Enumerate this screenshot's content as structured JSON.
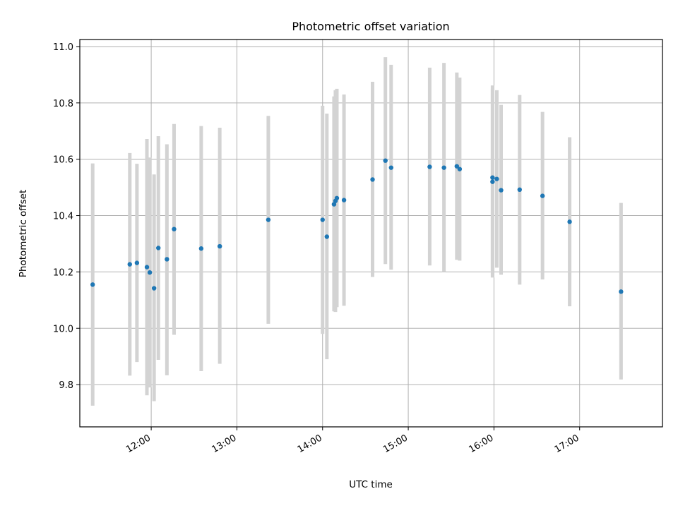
{
  "chart_data": {
    "type": "scatter",
    "title": "Photometric offset variation",
    "xlabel": "UTC time",
    "ylabel": "Photometric offset",
    "x_axis": "time",
    "xlim": [
      "11:10",
      "17:58"
    ],
    "ylim": [
      9.65,
      11.025
    ],
    "xticks": [
      "12:00",
      "13:00",
      "14:00",
      "15:00",
      "16:00",
      "17:00"
    ],
    "yticks": [
      9.8,
      10.0,
      10.2,
      10.4,
      10.6,
      10.8,
      11.0
    ],
    "grid": true,
    "colors": {
      "point": "#1f77b4",
      "errorbar": "#d3d3d3"
    },
    "points": [
      {
        "time": "11:19",
        "y": 10.155,
        "ylow": 9.725,
        "yhigh": 10.585
      },
      {
        "time": "11:45",
        "y": 10.227,
        "ylow": 9.832,
        "yhigh": 10.622
      },
      {
        "time": "11:50",
        "y": 10.232,
        "ylow": 9.88,
        "yhigh": 10.584
      },
      {
        "time": "11:57",
        "y": 10.217,
        "ylow": 9.762,
        "yhigh": 10.672
      },
      {
        "time": "11:59",
        "y": 10.198,
        "ylow": 9.79,
        "yhigh": 10.606
      },
      {
        "time": "12:02",
        "y": 10.142,
        "ylow": 9.741,
        "yhigh": 10.546
      },
      {
        "time": "12:05",
        "y": 10.285,
        "ylow": 9.888,
        "yhigh": 10.682
      },
      {
        "time": "12:11",
        "y": 10.245,
        "ylow": 9.833,
        "yhigh": 10.653
      },
      {
        "time": "12:16",
        "y": 10.352,
        "ylow": 9.977,
        "yhigh": 10.725
      },
      {
        "time": "12:35",
        "y": 10.283,
        "ylow": 9.848,
        "yhigh": 10.718
      },
      {
        "time": "12:48",
        "y": 10.291,
        "ylow": 9.874,
        "yhigh": 10.712
      },
      {
        "time": "13:22",
        "y": 10.385,
        "ylow": 10.016,
        "yhigh": 10.754
      },
      {
        "time": "14:00",
        "y": 10.385,
        "ylow": 9.98,
        "yhigh": 10.79
      },
      {
        "time": "14:03",
        "y": 10.325,
        "ylow": 9.89,
        "yhigh": 10.762
      },
      {
        "time": "14:08",
        "y": 10.44,
        "ylow": 10.06,
        "yhigh": 10.823
      },
      {
        "time": "14:09",
        "y": 10.452,
        "ylow": 10.058,
        "yhigh": 10.845
      },
      {
        "time": "14:10",
        "y": 10.462,
        "ylow": 10.075,
        "yhigh": 10.85
      },
      {
        "time": "14:15",
        "y": 10.455,
        "ylow": 10.08,
        "yhigh": 10.83
      },
      {
        "time": "14:35",
        "y": 10.528,
        "ylow": 10.182,
        "yhigh": 10.875
      },
      {
        "time": "14:44",
        "y": 10.595,
        "ylow": 10.228,
        "yhigh": 10.962
      },
      {
        "time": "14:48",
        "y": 10.57,
        "ylow": 10.208,
        "yhigh": 10.935
      },
      {
        "time": "15:15",
        "y": 10.573,
        "ylow": 10.223,
        "yhigh": 10.925
      },
      {
        "time": "15:25",
        "y": 10.57,
        "ylow": 10.2,
        "yhigh": 10.942
      },
      {
        "time": "15:34",
        "y": 10.575,
        "ylow": 10.243,
        "yhigh": 10.908
      },
      {
        "time": "15:36",
        "y": 10.565,
        "ylow": 10.24,
        "yhigh": 10.89
      },
      {
        "time": "15:59",
        "y": 10.52,
        "ylow": 10.18,
        "yhigh": 10.862
      },
      {
        "time": "15:59",
        "y": 10.535,
        "ylow": 10.205,
        "yhigh": 10.85
      },
      {
        "time": "16:02",
        "y": 10.53,
        "ylow": 10.215,
        "yhigh": 10.845
      },
      {
        "time": "16:05",
        "y": 10.49,
        "ylow": 10.19,
        "yhigh": 10.793
      },
      {
        "time": "16:18",
        "y": 10.492,
        "ylow": 10.155,
        "yhigh": 10.828
      },
      {
        "time": "16:34",
        "y": 10.47,
        "ylow": 10.173,
        "yhigh": 10.768
      },
      {
        "time": "16:53",
        "y": 10.378,
        "ylow": 10.078,
        "yhigh": 10.678
      },
      {
        "time": "17:29",
        "y": 10.13,
        "ylow": 9.818,
        "yhigh": 10.445
      }
    ]
  }
}
